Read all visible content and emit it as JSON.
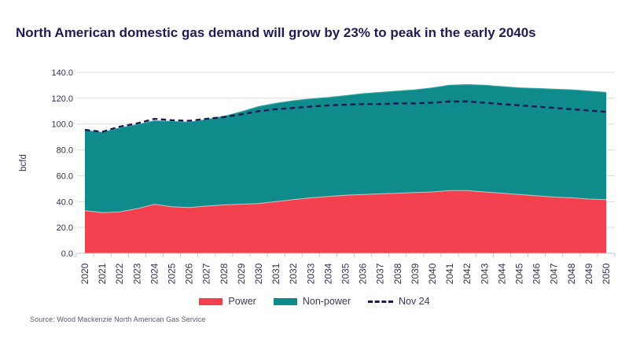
{
  "header": {
    "title": "North American domestic gas demand will grow by 23% to peak in the early 2040s"
  },
  "footer": {
    "source": "Source: Wood Mackenzie North American Gas Service"
  },
  "legend": {
    "power_label": "Power",
    "non_power_label": "Non-power",
    "nov24_label": "Nov 24"
  },
  "colors": {
    "power": "#F2404F",
    "non_power": "#0F8B8B",
    "nov24_line": "#1D1A54",
    "title_text": "#1F1B56",
    "grid": "#DCDCDC",
    "axis": "#C6C6C6",
    "axis_text": "#31314F"
  },
  "chart_data": {
    "type": "area",
    "stacked": true,
    "title": "North American domestic gas demand will grow by 23% to peak in the early 2040s",
    "xlabel": "",
    "ylabel": "bcfd",
    "ylim": [
      0,
      140
    ],
    "ytick_step": 20,
    "ytick_labels": [
      "0.0",
      "20.0",
      "40.0",
      "60.0",
      "80.0",
      "100.0",
      "120.0",
      "140.0"
    ],
    "grid": true,
    "legend_position": "bottom",
    "x": [
      2020,
      2021,
      2022,
      2023,
      2024,
      2025,
      2026,
      2027,
      2028,
      2029,
      2030,
      2031,
      2032,
      2033,
      2034,
      2035,
      2036,
      2037,
      2038,
      2039,
      2040,
      2041,
      2042,
      2043,
      2044,
      2045,
      2046,
      2047,
      2048,
      2049,
      2050
    ],
    "series": [
      {
        "name": "Power",
        "render": "area",
        "color": "#F2404F",
        "values": [
          33,
          31.5,
          32,
          34.5,
          38,
          36,
          35.5,
          36.5,
          37.5,
          38,
          38.5,
          40,
          41.5,
          43,
          44,
          45,
          45.5,
          46,
          46.5,
          47,
          47.5,
          48.5,
          48.5,
          47.5,
          46.5,
          45.5,
          44.5,
          43.5,
          43,
          42,
          41.5
        ]
      },
      {
        "name": "Non-power",
        "render": "area",
        "color": "#0F8B8B",
        "values": [
          62,
          62,
          65,
          65,
          64.5,
          66,
          66,
          67,
          68.5,
          71.5,
          75,
          76,
          76.5,
          76.5,
          76.5,
          77,
          78,
          78.5,
          79,
          79.5,
          80.5,
          81.5,
          82,
          82.5,
          82.5,
          82.5,
          83,
          83.5,
          83.5,
          83.5,
          83
        ]
      },
      {
        "name": "Nov 24",
        "render": "dashed-line",
        "color": "#1D1A54",
        "values": [
          95.5,
          94,
          98,
          100.5,
          104,
          103,
          102.5,
          104,
          105.5,
          107.5,
          110,
          111.5,
          112.5,
          113.5,
          114.5,
          115,
          115.5,
          115.5,
          116,
          116,
          116.5,
          117.5,
          117.5,
          116.5,
          115.5,
          114.5,
          113.5,
          112.5,
          111.5,
          110.5,
          109.5
        ]
      }
    ]
  }
}
